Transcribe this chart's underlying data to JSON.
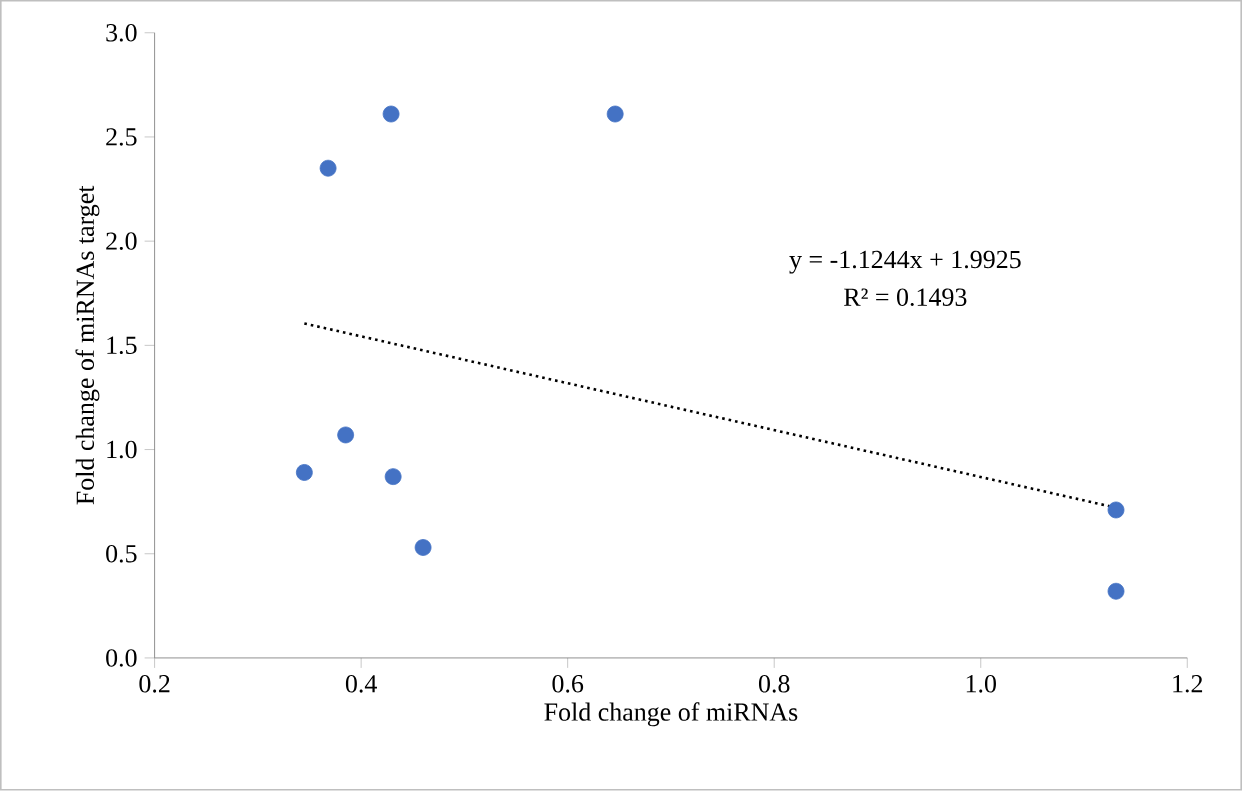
{
  "chart_data": {
    "type": "scatter",
    "xlabel": "Fold change of miRNAs",
    "ylabel": "Fold change of miRNAs target",
    "xlim": [
      0.2,
      1.2
    ],
    "ylim": [
      0,
      3.0
    ],
    "xticks": [
      {
        "value": 0.2,
        "label": "0.2"
      },
      {
        "value": 0.4,
        "label": "0.4"
      },
      {
        "value": 0.6,
        "label": "0.6"
      },
      {
        "value": 0.8,
        "label": "0.8"
      },
      {
        "value": 1.0,
        "label": "1.0"
      },
      {
        "value": 1.2,
        "label": "1.2"
      }
    ],
    "yticks": [
      {
        "value": 0,
        "label": "0.0"
      },
      {
        "value": 0.5,
        "label": "0.5"
      },
      {
        "value": 1.0,
        "label": "1.0"
      },
      {
        "value": 1.5,
        "label": "1.5"
      },
      {
        "value": 2.0,
        "label": "2.0"
      },
      {
        "value": 2.5,
        "label": "2.5"
      },
      {
        "value": 3.0,
        "label": "3.0"
      }
    ],
    "grid": false,
    "series": [
      {
        "color": "#4472c4",
        "marker": "circle",
        "x": [
          0.345,
          0.368,
          0.385,
          0.429,
          0.431,
          0.46,
          0.646,
          1.131,
          1.131
        ],
        "values": [
          0.89,
          2.35,
          1.07,
          2.61,
          0.87,
          0.53,
          2.61,
          0.71,
          0.32
        ]
      },
      {
        "type": "line",
        "color": "#000000",
        "marker": "none",
        "line_style": "dotted",
        "x": [
          0.345,
          1.131
        ],
        "values": [
          1.605,
          0.721
        ]
      }
    ],
    "annotations": [
      "y = -1.1244x + 1.9925",
      "R² = 0.1493"
    ]
  }
}
